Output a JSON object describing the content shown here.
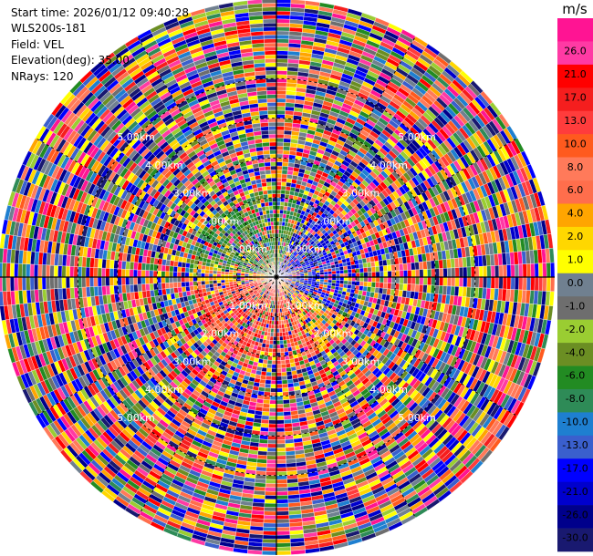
{
  "header": {
    "start_time": "Start time: 2026/01/12 09:40:28",
    "station": "WLS200s-181",
    "field": "Field: VEL",
    "elevation": "Elevation(deg): 35.00",
    "nrays": "NRays: 120"
  },
  "chart_data": {
    "type": "heatmap",
    "projection": "polar-ppi",
    "field": "VEL",
    "nrays": 120,
    "elevation_deg": 35.0,
    "range_rings_km": [
      1.0,
      2.0,
      3.0,
      4.0,
      5.0
    ],
    "range_ring_labels": [
      "1.00km",
      "2.00km",
      "3.00km",
      "4.00km",
      "5.00km"
    ],
    "max_range_km": 7.0,
    "radial_lines_deg": [
      0,
      30,
      60,
      90,
      120,
      150,
      180,
      210,
      240,
      270,
      300,
      330
    ],
    "colorbar": {
      "unit": "m/s",
      "ticks": [
        "26.0",
        "21.0",
        "17.0",
        "13.0",
        "10.0",
        "8.0",
        "6.0",
        "4.0",
        "2.0",
        "1.0",
        "0.0",
        "-1.0",
        "-2.0",
        "-4.0",
        "-6.0",
        "-8.0",
        "-10.0",
        "-13.0",
        "-17.0",
        "-21.0",
        "-26.0",
        "-30.0"
      ],
      "colors": [
        "#ff1493",
        "#ff3aa4",
        "#ff0000",
        "#f51e1e",
        "#ff3c3c",
        "#ff5a1e",
        "#ff7a5a",
        "#ff6e4c",
        "#ffa500",
        "#ffd700",
        "#ffff00",
        "#708090",
        "#6e6e6e",
        "#9acd32",
        "#6b8e23",
        "#228b22",
        "#2e8b57",
        "#1e7fd0",
        "#3a5fcd",
        "#0000ff",
        "#0000cd",
        "#00008b",
        "#191970"
      ]
    }
  }
}
